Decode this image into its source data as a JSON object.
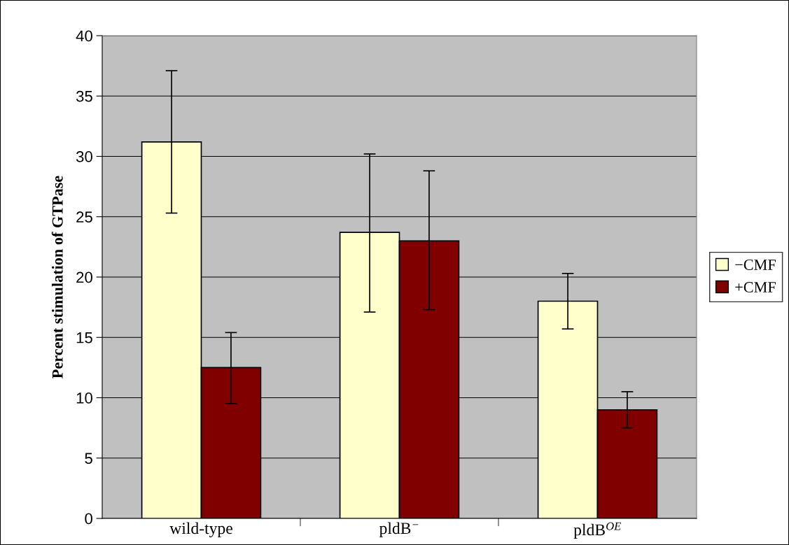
{
  "chart_data": {
    "type": "bar",
    "ylabel": "Percent stimulation of GTPase",
    "categories": [
      "wild-type",
      "pldB$^{−}$",
      "pldB$^{OE}$"
    ],
    "series": [
      {
        "name": "−CMF",
        "color": "#ffffcc",
        "values": [
          31.2,
          23.7,
          18.0
        ],
        "errors": [
          [
            25.3,
            37.1
          ],
          [
            17.1,
            30.2
          ],
          [
            15.7,
            20.3
          ]
        ]
      },
      {
        "name": "+CMF",
        "color": "#800000",
        "values": [
          12.5,
          23.0,
          9.0
        ],
        "errors": [
          [
            9.5,
            15.4
          ],
          [
            17.3,
            28.8
          ],
          [
            7.5,
            10.5
          ]
        ]
      }
    ],
    "ylim": [
      0,
      40
    ],
    "yticks": [
      0,
      5,
      10,
      15,
      20,
      25,
      30,
      35,
      40
    ],
    "grid": "y",
    "legend": "right"
  }
}
